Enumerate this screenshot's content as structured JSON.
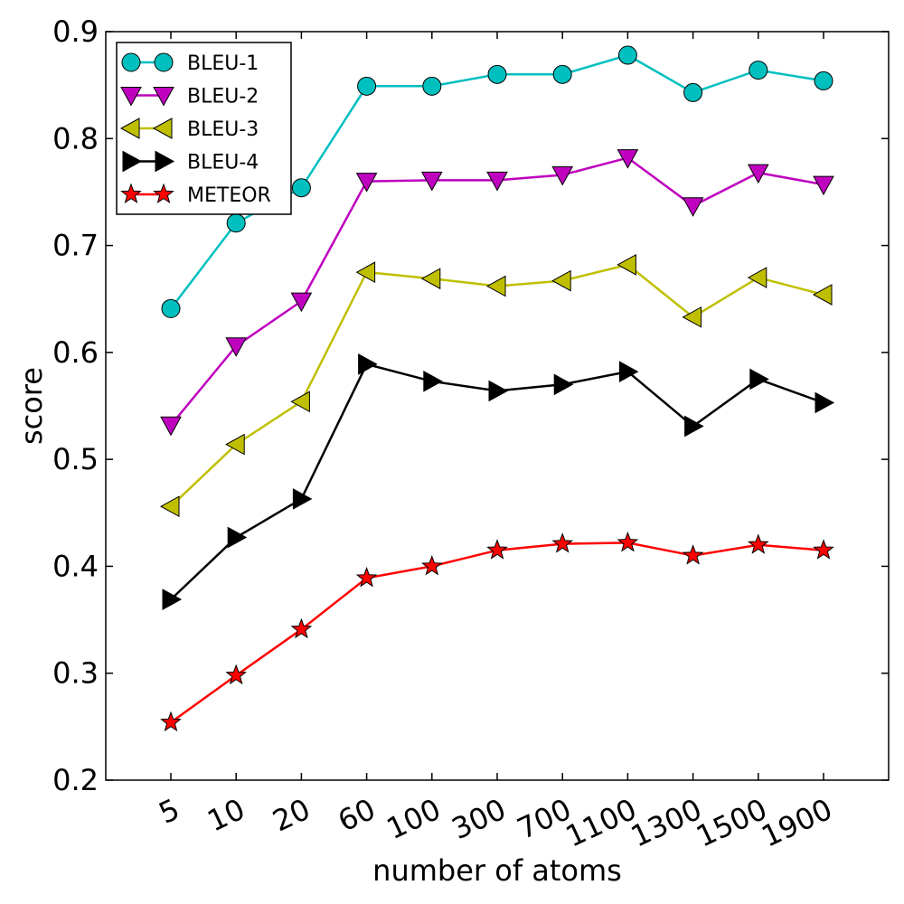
{
  "chart_data": {
    "type": "line",
    "xlabel": "number of atoms",
    "ylabel": "score",
    "categories": [
      "5",
      "10",
      "20",
      "60",
      "100",
      "300",
      "700",
      "1100",
      "1300",
      "1500",
      "1900"
    ],
    "ylim": [
      0.2,
      0.9
    ],
    "yticks": [
      "0.2",
      "0.3",
      "0.4",
      "0.5",
      "0.6",
      "0.7",
      "0.8",
      "0.9"
    ],
    "grid": false,
    "legend_position": "top-left",
    "series": [
      {
        "name": "BLEU-1",
        "marker": "circle",
        "color": "#00bfbf",
        "values": [
          0.641,
          0.721,
          0.754,
          0.849,
          0.849,
          0.86,
          0.86,
          0.878,
          0.843,
          0.864,
          0.854
        ]
      },
      {
        "name": "BLEU-2",
        "marker": "triangle-down",
        "color": "#bf00bf",
        "values": [
          0.532,
          0.606,
          0.648,
          0.76,
          0.761,
          0.761,
          0.766,
          0.782,
          0.737,
          0.768,
          0.757
        ]
      },
      {
        "name": "BLEU-3",
        "marker": "triangle-left",
        "color": "#bfbf00",
        "values": [
          0.456,
          0.514,
          0.554,
          0.675,
          0.669,
          0.662,
          0.667,
          0.682,
          0.633,
          0.67,
          0.654
        ]
      },
      {
        "name": "BLEU-4",
        "marker": "triangle-right",
        "color": "#000000",
        "values": [
          0.369,
          0.427,
          0.463,
          0.589,
          0.573,
          0.564,
          0.57,
          0.582,
          0.531,
          0.575,
          0.553
        ]
      },
      {
        "name": "METEOR",
        "marker": "star",
        "color": "#ff0000",
        "values": [
          0.254,
          0.298,
          0.341,
          0.389,
          0.4,
          0.415,
          0.421,
          0.422,
          0.41,
          0.42,
          0.415
        ]
      }
    ]
  }
}
